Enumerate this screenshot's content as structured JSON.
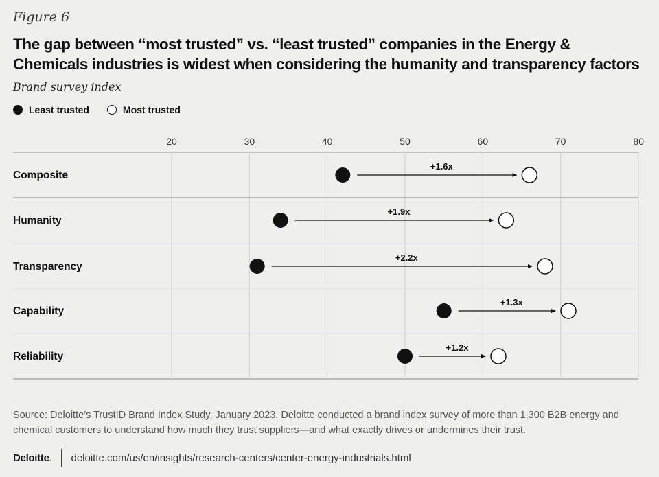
{
  "figure_label": "Figure 6",
  "title": "The gap between “most trusted” vs. “least trusted” companies in the Energy & Chemicals industries is widest when considering the humanity and transparency factors",
  "subtitle": "Brand survey index",
  "legend": {
    "least": "Least trusted",
    "most": "Most trusted"
  },
  "source": "Source: Deloitte’s TrustID Brand Index Study, January 2023. Deloitte conducted a brand index survey of more than 1,300 B2B energy and chemical customers to understand how much they trust suppliers—and what exactly drives or undermines their trust.",
  "footer": {
    "logo": "Deloitte",
    "logo_dot": ".",
    "url": "deloitte.com/us/en/insights/research-centers/center-energy-industrials.html"
  },
  "chart_data": {
    "type": "dumbbell",
    "x_ticks": [
      20,
      30,
      40,
      50,
      60,
      70,
      80
    ],
    "xlim": [
      5,
      80
    ],
    "grid": true,
    "legend_position": "top-left",
    "colors": {
      "least": "#111111",
      "most": "#ffffff",
      "grid": "#cfcfcf",
      "rule": "#9a9a9a"
    },
    "series": [
      {
        "name": "Least trusted",
        "key": "least"
      },
      {
        "name": "Most trusted",
        "key": "most"
      }
    ],
    "rows": [
      {
        "category": "Composite",
        "least": 42,
        "most": 66,
        "label": "+1.6x"
      },
      {
        "category": "Humanity",
        "least": 34,
        "most": 63,
        "label": "+1.9x"
      },
      {
        "category": "Transparency",
        "least": 31,
        "most": 68,
        "label": "+2.2x"
      },
      {
        "category": "Capability",
        "least": 55,
        "most": 71,
        "label": "+1.3x"
      },
      {
        "category": "Reliability",
        "least": 50,
        "most": 62,
        "label": "+1.2x"
      }
    ]
  }
}
